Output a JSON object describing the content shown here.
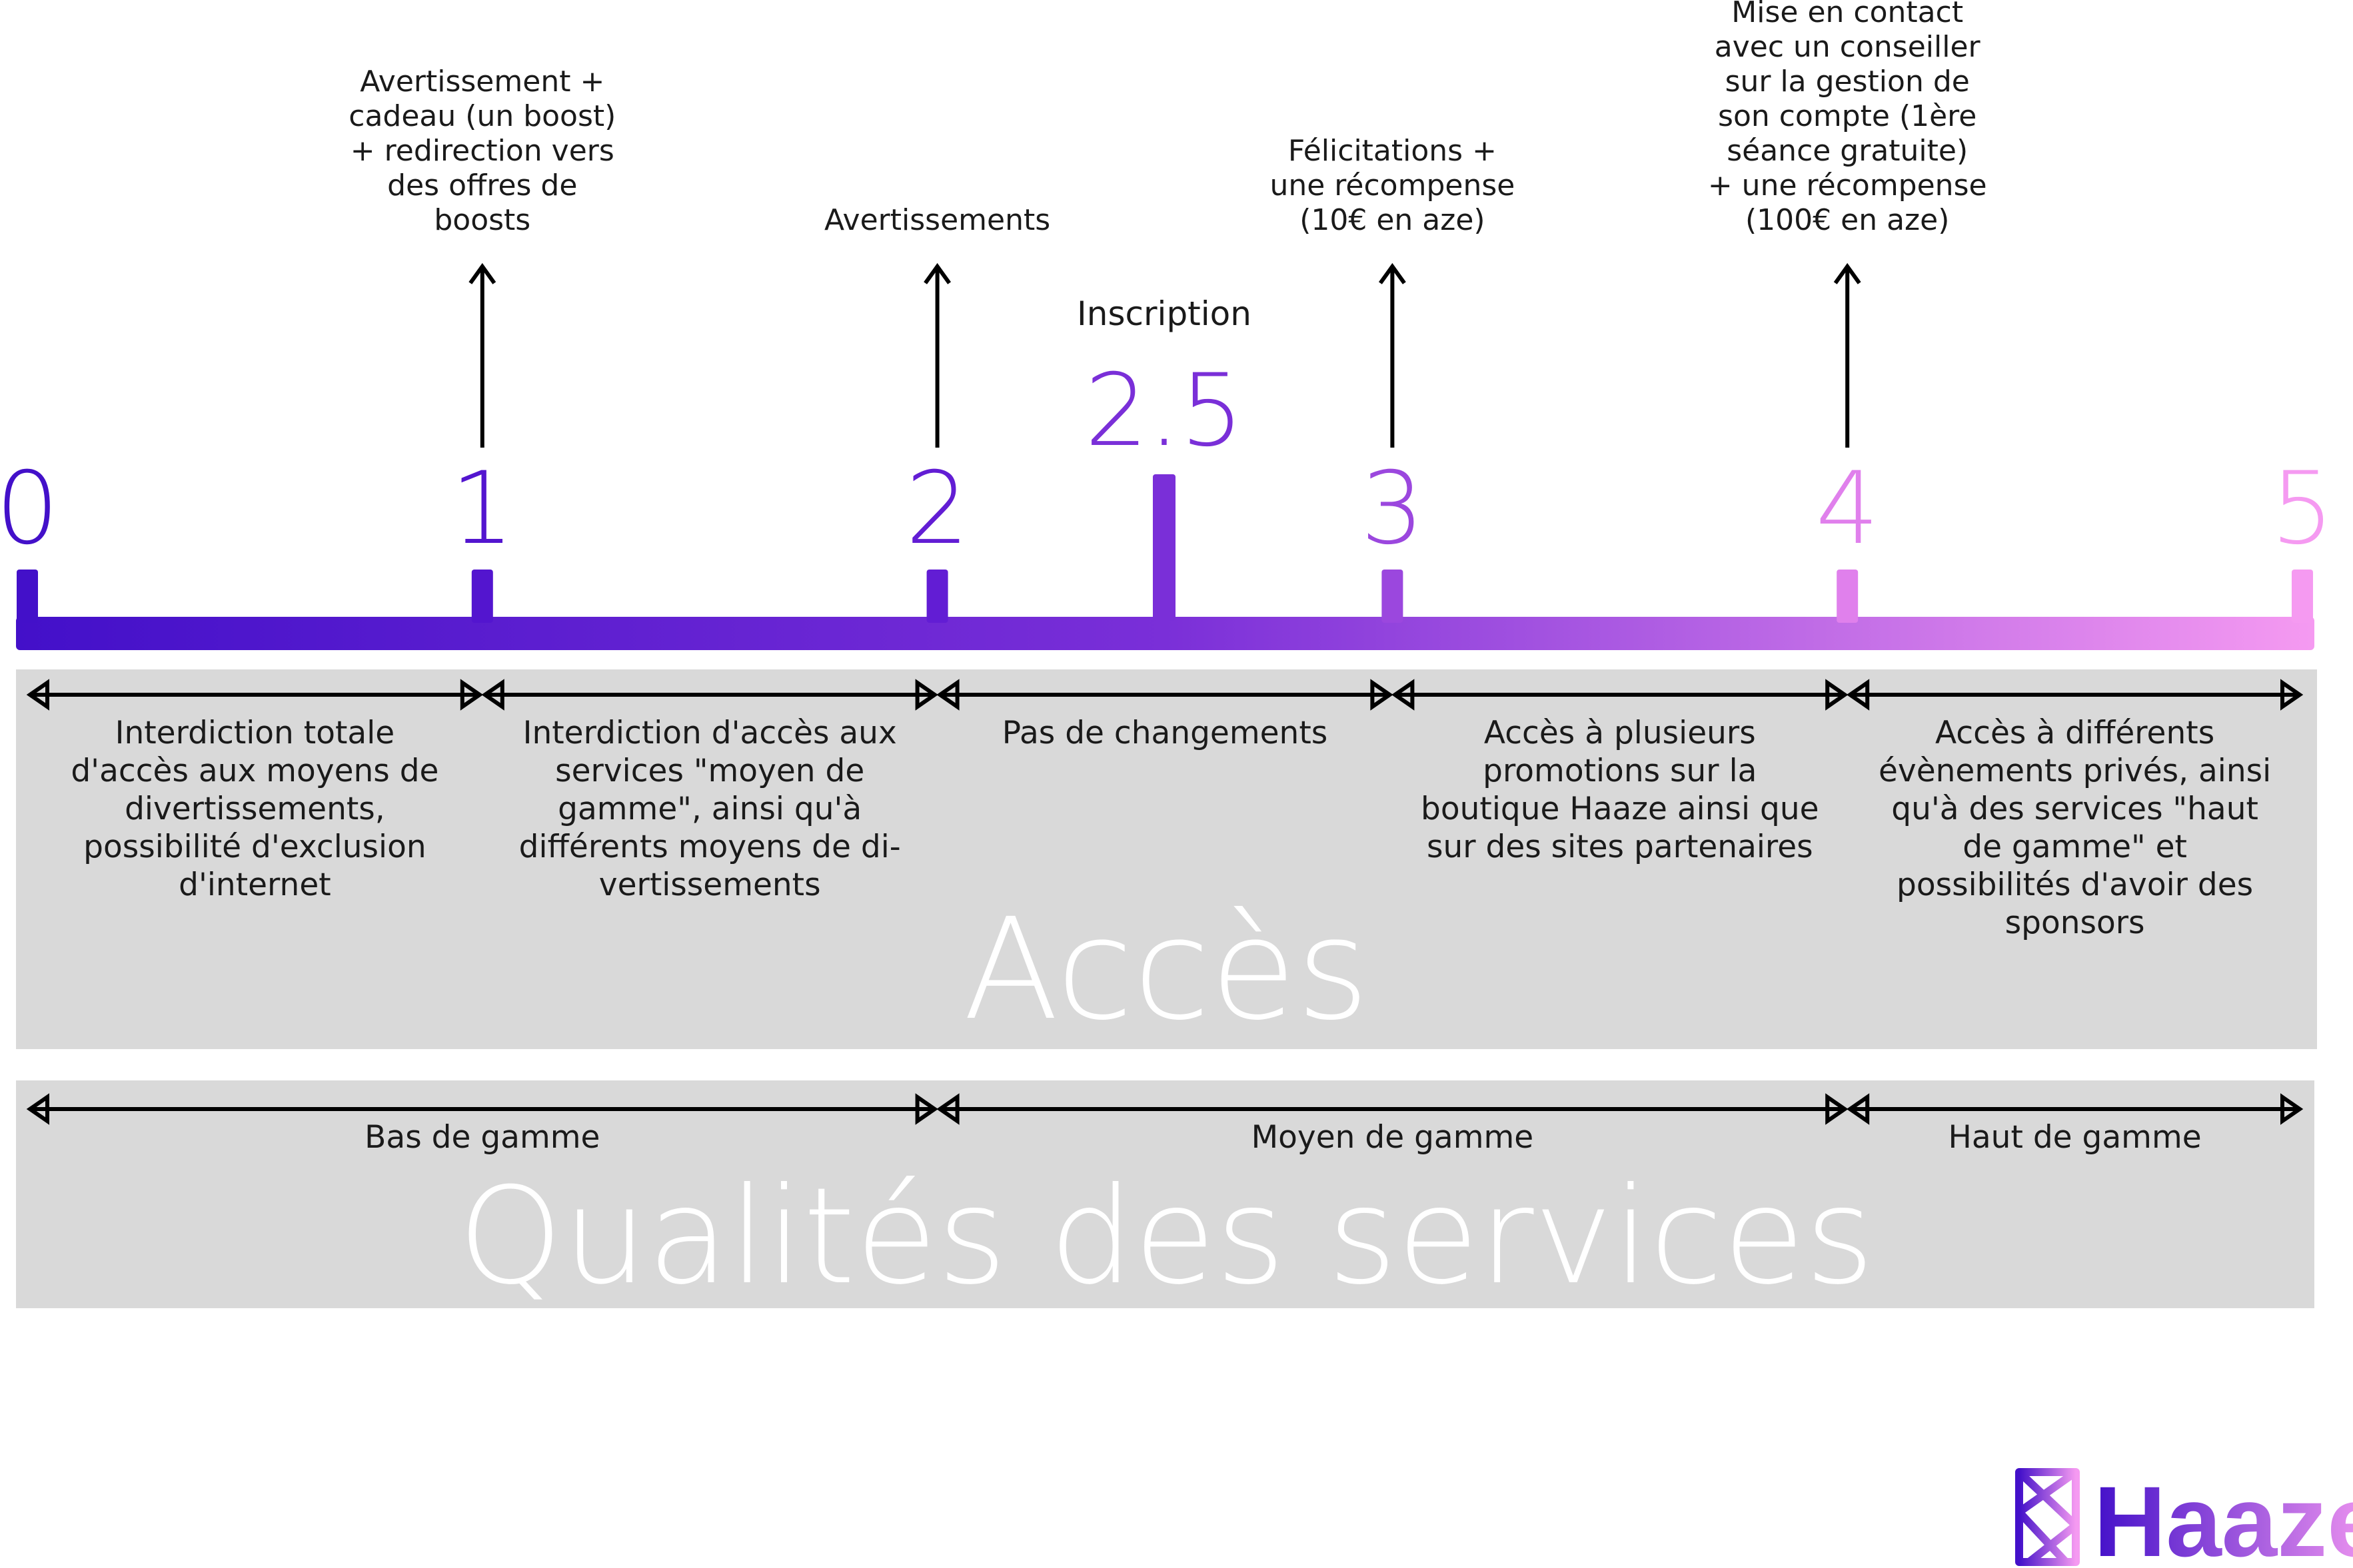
{
  "scale": {
    "ticks": [
      {
        "label": "0",
        "color": "#4310C9"
      },
      {
        "label": "1",
        "color": "#5315CF"
      },
      {
        "label": "2",
        "color": "#621DD4"
      },
      {
        "label": "3",
        "color": "#9B47DE"
      },
      {
        "label": "4",
        "color": "#E080EC"
      },
      {
        "label": "5",
        "color": "#F59AF1"
      }
    ],
    "midpoint": {
      "label": "2.5",
      "caption": "Inscription",
      "color": "#7A2FD8"
    },
    "gradient": {
      "start": "#4310C9",
      "mid": "#7A2FD8",
      "end": "#F59AF1"
    }
  },
  "consequences": [
    {
      "lines": [
        "Avertissement +",
        "cadeau (un boost)",
        "+ redirection vers",
        "des offres de",
        "boosts"
      ]
    },
    {
      "lines": [
        "Avertissements"
      ]
    },
    {
      "lines": [
        "Félicitations +",
        "une récompense",
        "(10€ en aze)"
      ]
    },
    {
      "lines": [
        "Mise en contact",
        "avec un conseiller",
        "sur la gestion de",
        "son compte (1ère",
        "séance gratuite)",
        "+ une récompense",
        "(100€ en aze)"
      ]
    }
  ],
  "access": {
    "title": "Accès",
    "ranges": [
      {
        "lines": [
          "Interdiction totale",
          "d'accès aux moyens de",
          "divertissements,",
          "possibilité d'exclusion",
          "d'internet"
        ]
      },
      {
        "lines": [
          "Interdiction d'accès aux",
          "services \"moyen de",
          "gamme\", ainsi qu'à",
          "différents moyens de di-",
          "vertissements"
        ]
      },
      {
        "lines": [
          "Pas de changements"
        ]
      },
      {
        "lines": [
          "Accès à plusieurs",
          "promotions sur la",
          "boutique Haaze ainsi que",
          "sur des sites partenaires"
        ]
      },
      {
        "lines": [
          "Accès à différents",
          "évènements privés, ainsi",
          "qu'à des services \"haut",
          "de gamme\" et",
          "possibilités d'avoir des",
          "sponsors"
        ]
      }
    ]
  },
  "quality": {
    "title": "Qualités des services",
    "ranges": [
      {
        "label": "Bas de gamme"
      },
      {
        "label": "Moyen de gamme"
      },
      {
        "label": "Haut de gamme"
      }
    ]
  },
  "logo": {
    "text": "Haaze",
    "color_start": "#4310C9",
    "color_end": "#F59AF1"
  }
}
